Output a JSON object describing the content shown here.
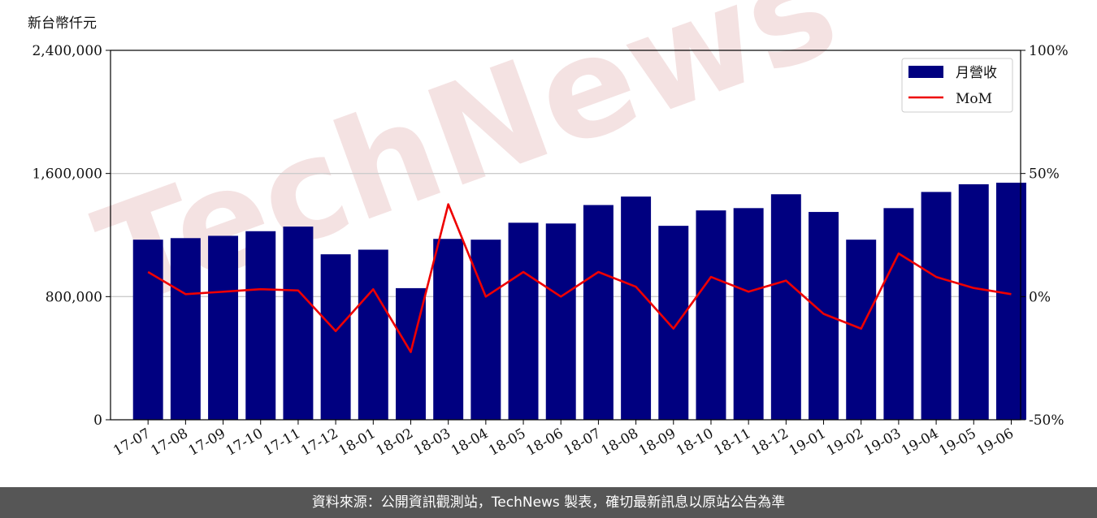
{
  "y_unit_label": "新台幣仟元",
  "footer_text": "資料來源：公開資訊觀測站，TechNews 製表，確切最新訊息以原站公告為準",
  "watermark_text": "TechNews",
  "colors": {
    "bar": "#000080",
    "line": "#ee0000",
    "grid": "#cccccc",
    "footer_bg": "#565656",
    "watermark": "#f0d8d8"
  },
  "chart_data": {
    "type": "bar",
    "categories": [
      "17-07",
      "17-08",
      "17-09",
      "17-10",
      "17-11",
      "17-12",
      "18-01",
      "18-02",
      "18-03",
      "18-04",
      "18-05",
      "18-06",
      "18-07",
      "18-08",
      "18-09",
      "18-10",
      "18-11",
      "18-12",
      "19-01",
      "19-02",
      "19-03",
      "19-04",
      "19-05",
      "19-06"
    ],
    "series": [
      {
        "name": "月營收",
        "type": "bar",
        "axis": "left",
        "values": [
          1170000,
          1180000,
          1195000,
          1225000,
          1255000,
          1075000,
          1105000,
          855000,
          1175000,
          1170000,
          1280000,
          1275000,
          1395000,
          1450000,
          1260000,
          1360000,
          1375000,
          1465000,
          1350000,
          1170000,
          1375000,
          1480000,
          1530000,
          1540000
        ]
      },
      {
        "name": "MoM",
        "type": "line",
        "axis": "right",
        "values": [
          10.0,
          1.0,
          2.0,
          3.0,
          2.5,
          -14.0,
          3.0,
          -22.5,
          37.5,
          0.0,
          10.0,
          0.0,
          10.0,
          4.0,
          -13.0,
          8.0,
          2.0,
          6.5,
          -7.0,
          -13.0,
          17.5,
          8.0,
          3.5,
          1.0
        ]
      }
    ],
    "left_axis": {
      "ylim": [
        0,
        2400000
      ],
      "ticks": [
        0,
        800000,
        1600000,
        2400000
      ],
      "tick_labels": [
        "0",
        "800,000",
        "1,600,000",
        "2,400,000"
      ]
    },
    "right_axis": {
      "ylim": [
        -50,
        100
      ],
      "ticks": [
        -50,
        0,
        50,
        100
      ],
      "tick_labels": [
        "-50%",
        "0%",
        "50%",
        "100%"
      ]
    },
    "grid": "horizontal",
    "legend": {
      "placement": "top-right",
      "entries": [
        "月營收",
        "MoM"
      ]
    }
  }
}
